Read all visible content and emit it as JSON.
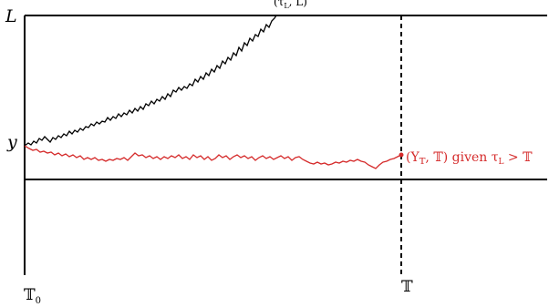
{
  "labels": {
    "L": "L",
    "y": "y",
    "tau_point": "(τ",
    "tau_sub": "L",
    "tau_point_end": ", L)",
    "T0": "𝕋",
    "T0_sub": "0",
    "T": "𝕋",
    "red_label": "(Y",
    "red_label_sub": "𝕋",
    "red_label_rest": ", 𝕋) given τ",
    "red_label_sub2": "L",
    "red_label_end": " > 𝕋"
  },
  "colors": {
    "axis": "#000000",
    "black_path": "#000000",
    "red_path": "#d52b2b"
  }
}
